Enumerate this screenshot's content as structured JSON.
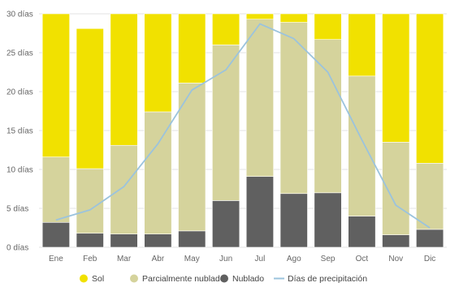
{
  "chart_data": {
    "type": "bar",
    "stacked": true,
    "categories": [
      "Ene",
      "Feb",
      "Mar",
      "Abr",
      "May",
      "Jun",
      "Jul",
      "Ago",
      "Sep",
      "Oct",
      "Nov",
      "Dic"
    ],
    "y_tick_labels": [
      "0 días",
      "5 días",
      "10 días",
      "15 días",
      "20 días",
      "25 días",
      "30 días"
    ],
    "y_tick_values": [
      0,
      5,
      10,
      15,
      20,
      25,
      30
    ],
    "ylim": [
      0,
      30
    ],
    "grid": true,
    "legend_position": "bottom",
    "series": [
      {
        "name": "Nublado",
        "kind": "bar",
        "color": "#606060",
        "values": [
          3.2,
          1.8,
          1.7,
          1.7,
          2.1,
          6.0,
          9.1,
          6.9,
          7.0,
          4.0,
          1.6,
          2.3
        ]
      },
      {
        "name": "Parcialmente nublado",
        "kind": "bar",
        "color": "#d5d39c",
        "values": [
          8.4,
          8.3,
          11.4,
          15.7,
          19.0,
          20.0,
          20.2,
          22.0,
          19.7,
          18.0,
          11.9,
          8.5
        ]
      },
      {
        "name": "Sol",
        "kind": "bar",
        "color": "#f1e100",
        "values": [
          18.4,
          18.0,
          16.9,
          12.6,
          8.9,
          4.0,
          0.7,
          1.1,
          3.3,
          8.0,
          16.5,
          19.2
        ]
      },
      {
        "name": "Días de precipitación",
        "kind": "line",
        "color": "#9bc3dd",
        "values": [
          3.5,
          4.8,
          7.8,
          13.3,
          20.2,
          22.8,
          28.7,
          26.8,
          22.5,
          13.8,
          5.4,
          2.5
        ]
      }
    ]
  }
}
